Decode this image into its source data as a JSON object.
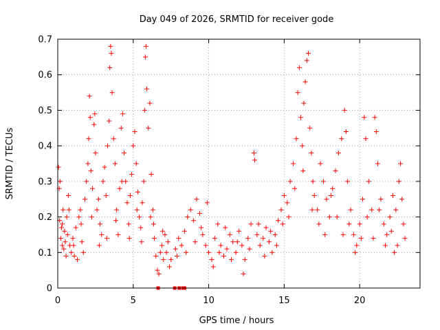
{
  "chart_data": {
    "type": "scatter",
    "title": "Day 049 of 2026, SRMTID for receiver gode",
    "xlabel": "GPS time / hours",
    "ylabel": "SRMTID / TECUs",
    "xlim": [
      0,
      24
    ],
    "ylim": [
      0,
      0.7
    ],
    "x_ticks": [
      0,
      5,
      10,
      15,
      20
    ],
    "x_tick_labels": [
      "0",
      "5",
      "10",
      "15",
      "20"
    ],
    "y_ticks": [
      0,
      0.1,
      0.2,
      0.3,
      0.4,
      0.5,
      0.6,
      0.7
    ],
    "y_tick_labels": [
      "0",
      "0.1",
      "0.2",
      "0.3",
      "0.4",
      "0.5",
      "0.6",
      "0.7"
    ],
    "grid": true,
    "marker": "+",
    "color": "#ff0000",
    "series": [
      {
        "name": "SRMTID",
        "points": [
          [
            0.05,
            0.34
          ],
          [
            0.1,
            0.28
          ],
          [
            0.12,
            0.19
          ],
          [
            0.15,
            0.3
          ],
          [
            0.2,
            0.14
          ],
          [
            0.25,
            0.17
          ],
          [
            0.3,
            0.12
          ],
          [
            0.35,
            0.22
          ],
          [
            0.4,
            0.11
          ],
          [
            0.45,
            0.16
          ],
          [
            0.5,
            0.13
          ],
          [
            0.55,
            0.09
          ],
          [
            0.6,
            0.2
          ],
          [
            0.65,
            0.15
          ],
          [
            0.7,
            0.26
          ],
          [
            0.75,
            0.22
          ],
          [
            0.8,
            0.12
          ],
          [
            0.9,
            0.1
          ],
          [
            1.0,
            0.14
          ],
          [
            1.1,
            0.09
          ],
          [
            1.2,
            0.17
          ],
          [
            1.3,
            0.08
          ],
          [
            1.4,
            0.2
          ],
          [
            1.5,
            0.22
          ],
          [
            1.6,
            0.13
          ],
          [
            1.7,
            0.1
          ],
          [
            1.8,
            0.25
          ],
          [
            1.9,
            0.3
          ],
          [
            2.0,
            0.35
          ],
          [
            2.05,
            0.42
          ],
          [
            2.1,
            0.54
          ],
          [
            2.15,
            0.48
          ],
          [
            2.2,
            0.33
          ],
          [
            2.3,
            0.28
          ],
          [
            2.4,
            0.46
          ],
          [
            2.45,
            0.49
          ],
          [
            2.5,
            0.38
          ],
          [
            2.6,
            0.22
          ],
          [
            2.7,
            0.25
          ],
          [
            2.8,
            0.18
          ],
          [
            2.9,
            0.15
          ],
          [
            3.0,
            0.3
          ],
          [
            3.1,
            0.34
          ],
          [
            3.2,
            0.26
          ],
          [
            3.3,
            0.4
          ],
          [
            3.4,
            0.47
          ],
          [
            3.45,
            0.62
          ],
          [
            3.5,
            0.68
          ],
          [
            3.55,
            0.66
          ],
          [
            3.6,
            0.55
          ],
          [
            3.7,
            0.42
          ],
          [
            3.8,
            0.35
          ],
          [
            3.9,
            0.22
          ],
          [
            4.0,
            0.15
          ],
          [
            4.1,
            0.28
          ],
          [
            4.2,
            0.45
          ],
          [
            4.3,
            0.49
          ],
          [
            4.4,
            0.38
          ],
          [
            4.5,
            0.3
          ],
          [
            4.6,
            0.24
          ],
          [
            4.7,
            0.18
          ],
          [
            4.8,
            0.26
          ],
          [
            4.9,
            0.32
          ],
          [
            5.0,
            0.4
          ],
          [
            5.1,
            0.44
          ],
          [
            5.2,
            0.35
          ],
          [
            5.3,
            0.27
          ],
          [
            5.4,
            0.2
          ],
          [
            5.5,
            0.17
          ],
          [
            5.6,
            0.24
          ],
          [
            5.7,
            0.3
          ],
          [
            5.75,
            0.5
          ],
          [
            5.8,
            0.65
          ],
          [
            5.85,
            0.68
          ],
          [
            5.9,
            0.56
          ],
          [
            6.0,
            0.45
          ],
          [
            6.1,
            0.52
          ],
          [
            6.2,
            0.32
          ],
          [
            6.3,
            0.22
          ],
          [
            6.4,
            0.14
          ],
          [
            6.5,
            0.09
          ],
          [
            6.6,
            0.05
          ],
          [
            6.7,
            0.04
          ],
          [
            6.8,
            0.1
          ],
          [
            6.9,
            0.12
          ],
          [
            7.0,
            0.08
          ],
          [
            7.1,
            0.15
          ],
          [
            7.2,
            0.1
          ],
          [
            7.3,
            0.13
          ],
          [
            7.5,
            0.08
          ],
          [
            7.8,
            0.11
          ],
          [
            8.0,
            0.14
          ],
          [
            8.2,
            0.12
          ],
          [
            8.4,
            0.16
          ],
          [
            8.6,
            0.2
          ],
          [
            8.8,
            0.22
          ],
          [
            9.0,
            0.19
          ],
          [
            9.2,
            0.25
          ],
          [
            9.4,
            0.21
          ],
          [
            9.6,
            0.15
          ],
          [
            9.8,
            0.12
          ],
          [
            10.0,
            0.1
          ],
          [
            10.2,
            0.08
          ],
          [
            10.4,
            0.14
          ],
          [
            10.6,
            0.18
          ],
          [
            10.8,
            0.12
          ],
          [
            11.0,
            0.09
          ],
          [
            11.2,
            0.11
          ],
          [
            11.4,
            0.15
          ],
          [
            11.6,
            0.13
          ],
          [
            11.8,
            0.1
          ],
          [
            12.0,
            0.16
          ],
          [
            12.2,
            0.12
          ],
          [
            12.4,
            0.08
          ],
          [
            12.6,
            0.14
          ],
          [
            12.8,
            0.18
          ],
          [
            13.0,
            0.38
          ],
          [
            13.05,
            0.36
          ],
          [
            13.2,
            0.15
          ],
          [
            13.4,
            0.12
          ],
          [
            13.6,
            0.14
          ],
          [
            13.8,
            0.17
          ],
          [
            14.0,
            0.13
          ],
          [
            14.2,
            0.1
          ],
          [
            14.4,
            0.15
          ],
          [
            14.6,
            0.19
          ],
          [
            14.8,
            0.22
          ],
          [
            15.0,
            0.26
          ],
          [
            15.2,
            0.24
          ],
          [
            15.4,
            0.3
          ],
          [
            15.6,
            0.35
          ],
          [
            15.8,
            0.42
          ],
          [
            15.9,
            0.55
          ],
          [
            16.0,
            0.62
          ],
          [
            16.1,
            0.48
          ],
          [
            16.2,
            0.4
          ],
          [
            16.3,
            0.52
          ],
          [
            16.4,
            0.58
          ],
          [
            16.5,
            0.64
          ],
          [
            16.6,
            0.66
          ],
          [
            16.7,
            0.45
          ],
          [
            16.8,
            0.38
          ],
          [
            16.9,
            0.3
          ],
          [
            17.0,
            0.26
          ],
          [
            17.2,
            0.22
          ],
          [
            17.4,
            0.35
          ],
          [
            17.6,
            0.3
          ],
          [
            17.8,
            0.25
          ],
          [
            18.0,
            0.2
          ],
          [
            18.2,
            0.28
          ],
          [
            18.4,
            0.33
          ],
          [
            18.6,
            0.38
          ],
          [
            18.8,
            0.42
          ],
          [
            19.0,
            0.5
          ],
          [
            19.1,
            0.44
          ],
          [
            19.2,
            0.3
          ],
          [
            19.4,
            0.22
          ],
          [
            19.6,
            0.15
          ],
          [
            19.8,
            0.12
          ],
          [
            20.0,
            0.18
          ],
          [
            20.2,
            0.25
          ],
          [
            20.3,
            0.48
          ],
          [
            20.4,
            0.42
          ],
          [
            20.6,
            0.3
          ],
          [
            20.8,
            0.22
          ],
          [
            21.0,
            0.48
          ],
          [
            21.1,
            0.44
          ],
          [
            21.2,
            0.35
          ],
          [
            21.4,
            0.25
          ],
          [
            21.6,
            0.18
          ],
          [
            21.8,
            0.15
          ],
          [
            22.0,
            0.2
          ],
          [
            22.2,
            0.26
          ],
          [
            22.4,
            0.22
          ],
          [
            22.5,
            0.12
          ],
          [
            22.6,
            0.3
          ],
          [
            22.7,
            0.35
          ],
          [
            22.8,
            0.25
          ],
          [
            22.9,
            0.18
          ],
          [
            23.0,
            0.14
          ],
          [
            0.3,
            0.18
          ],
          [
            1.05,
            0.12
          ],
          [
            1.55,
            0.18
          ],
          [
            2.25,
            0.2
          ],
          [
            2.75,
            0.12
          ],
          [
            3.25,
            0.14
          ],
          [
            3.85,
            0.19
          ],
          [
            4.25,
            0.3
          ],
          [
            4.75,
            0.14
          ],
          [
            5.25,
            0.22
          ],
          [
            5.55,
            0.13
          ],
          [
            6.15,
            0.2
          ],
          [
            6.35,
            0.18
          ],
          [
            6.95,
            0.16
          ],
          [
            7.4,
            0.06
          ],
          [
            7.9,
            0.09
          ],
          [
            8.5,
            0.1
          ],
          [
            9.1,
            0.13
          ],
          [
            9.5,
            0.17
          ],
          [
            9.9,
            0.24
          ],
          [
            10.3,
            0.06
          ],
          [
            10.7,
            0.1
          ],
          [
            11.1,
            0.17
          ],
          [
            11.5,
            0.08
          ],
          [
            11.9,
            0.13
          ],
          [
            12.3,
            0.04
          ],
          [
            12.7,
            0.11
          ],
          [
            13.3,
            0.18
          ],
          [
            13.7,
            0.09
          ],
          [
            14.1,
            0.16
          ],
          [
            14.5,
            0.12
          ],
          [
            14.9,
            0.18
          ],
          [
            15.3,
            0.2
          ],
          [
            15.7,
            0.28
          ],
          [
            16.25,
            0.33
          ],
          [
            16.85,
            0.22
          ],
          [
            17.3,
            0.18
          ],
          [
            17.7,
            0.15
          ],
          [
            18.1,
            0.26
          ],
          [
            18.5,
            0.2
          ],
          [
            18.9,
            0.15
          ],
          [
            19.3,
            0.18
          ],
          [
            19.7,
            0.1
          ],
          [
            20.1,
            0.14
          ],
          [
            20.5,
            0.2
          ],
          [
            20.9,
            0.14
          ],
          [
            21.3,
            0.22
          ],
          [
            21.7,
            0.12
          ],
          [
            22.1,
            0.16
          ],
          [
            22.3,
            0.1
          ]
        ]
      }
    ],
    "zero_markers_x": [
      6.65,
      7.75,
      8.05,
      8.3,
      8.4
    ]
  }
}
